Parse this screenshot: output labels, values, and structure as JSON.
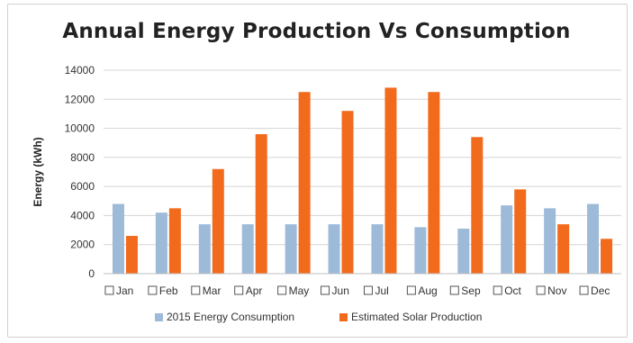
{
  "chart_data": {
    "type": "bar",
    "title": "Annual Energy Production Vs Consumption",
    "ylabel": "Energy (kWh)",
    "xlabel": "",
    "ylim": [
      0,
      14000
    ],
    "yticks": [
      0,
      2000,
      4000,
      6000,
      8000,
      10000,
      12000,
      14000
    ],
    "grid": true,
    "legend_position": "bottom",
    "categories": [
      "Jan",
      "Feb",
      "Mar",
      "Apr",
      "May",
      "Jun",
      "Jul",
      "Aug",
      "Sep",
      "Oct",
      "Nov",
      "Dec"
    ],
    "series": [
      {
        "name": "2015 Energy Consumption",
        "color": "#9dbbd9",
        "values": [
          4800,
          4200,
          3400,
          3400,
          3400,
          3400,
          3400,
          3200,
          3100,
          4700,
          4500,
          4800
        ]
      },
      {
        "name": "Estimated Solar Production",
        "color": "#f26b1d",
        "values": [
          2600,
          4500,
          7200,
          9600,
          12500,
          11200,
          12800,
          12500,
          9400,
          5800,
          3400,
          2400
        ]
      }
    ]
  }
}
